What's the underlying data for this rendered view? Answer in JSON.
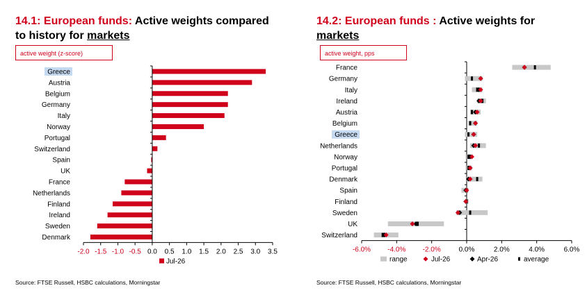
{
  "left": {
    "title_red": "14.1: European funds:",
    "title_mid": " Active weights compared to history for ",
    "title_u": "markets",
    "unit": "active weight (z-score)",
    "source": "Source: FTSE Russell, HSBC calculations, Morningstar"
  },
  "right": {
    "title_red": "14.2: European funds :",
    "title_mid": " Active weights for ",
    "title_u": "markets",
    "unit": "active weight, pps",
    "source": "Source: FTSE Russell, HSBC calculations, Morningstar"
  },
  "colors": {
    "accent": "#d0021b",
    "highlight": "#c5d9f1",
    "range": "#c8c8c8"
  },
  "chart_data": [
    {
      "type": "bar",
      "orientation": "horizontal",
      "categories": [
        "Greece",
        "Austria",
        "Belgium",
        "Germany",
        "Italy",
        "Norway",
        "Portugal",
        "Switzerland",
        "Spain",
        "UK",
        "France",
        "Netherlands",
        "Finland",
        "Ireland",
        "Sweden",
        "Denmark"
      ],
      "highlight_category": "Greece",
      "series": [
        {
          "name": "Jul-26",
          "values": [
            3.3,
            2.9,
            2.2,
            2.2,
            2.1,
            1.5,
            0.4,
            0.15,
            -0.03,
            -0.15,
            -0.8,
            -0.9,
            -1.15,
            -1.3,
            -1.6,
            -1.8
          ]
        }
      ],
      "xlim": [
        -2.0,
        3.5
      ],
      "xticks": [
        "-2.0",
        "-1.5",
        "-1.0",
        "-0.5",
        "0.0",
        "0.5",
        "1.0",
        "1.5",
        "2.0",
        "2.5",
        "3.0",
        "3.5"
      ],
      "xtick_values": [
        -2.0,
        -1.5,
        -1.0,
        -0.5,
        0.0,
        0.5,
        1.0,
        1.5,
        2.0,
        2.5,
        3.0,
        3.5
      ],
      "legend": [
        "Jul-26"
      ],
      "legend_position": "bottom"
    },
    {
      "type": "range-dot",
      "orientation": "horizontal",
      "categories": [
        "France",
        "Germany",
        "Italy",
        "Ireland",
        "Austria",
        "Belgium",
        "Greece",
        "Netherlands",
        "Norway",
        "Portugal",
        "Denmark",
        "Spain",
        "Finland",
        "Sweden",
        "UK",
        "Switzerland"
      ],
      "highlight_category": "Greece",
      "series": [
        {
          "name": "range",
          "values": [
            [
              2.6,
              4.8
            ],
            [
              -0.1,
              0.9
            ],
            [
              0.3,
              0.9
            ],
            [
              0.6,
              1.1
            ],
            [
              0.2,
              0.8
            ],
            [
              0.1,
              0.6
            ],
            [
              -0.1,
              0.6
            ],
            [
              0.2,
              1.1
            ],
            [
              0.0,
              0.3
            ],
            [
              0.0,
              0.3
            ],
            [
              0.0,
              0.9
            ],
            [
              -0.3,
              0.1
            ],
            [
              -0.1,
              0.1
            ],
            [
              -0.6,
              1.2
            ],
            [
              -4.5,
              -1.3
            ],
            [
              -5.3,
              -3.9
            ]
          ]
        },
        {
          "name": "Jul-26",
          "values": [
            3.3,
            0.8,
            0.8,
            0.8,
            0.6,
            0.5,
            0.4,
            0.5,
            0.3,
            0.2,
            0.2,
            0.0,
            -0.05,
            -0.5,
            -3.1,
            -4.6
          ]
        },
        {
          "name": "Apr-26",
          "values": [
            3.3,
            0.8,
            0.7,
            0.7,
            0.5,
            0.5,
            0.4,
            0.4,
            0.2,
            0.2,
            0.1,
            -0.05,
            -0.05,
            -0.4,
            -2.9,
            -4.7
          ]
        },
        {
          "name": "average",
          "values": [
            3.9,
            0.3,
            0.6,
            0.9,
            0.3,
            0.2,
            0.1,
            0.7,
            0.1,
            0.1,
            0.6,
            0.0,
            0.0,
            0.2,
            -2.8,
            -4.8
          ]
        }
      ],
      "xlim": [
        -6.0,
        6.0
      ],
      "xticks": [
        "-6.0%",
        "-4.0%",
        "-2.0%",
        "0.0%",
        "2.0%",
        "4.0%",
        "6.0%"
      ],
      "xtick_values": [
        -6,
        -4,
        -2,
        0,
        2,
        4,
        6
      ],
      "legend": [
        "range",
        "Jul-26",
        "Apr-26",
        "average"
      ],
      "legend_position": "bottom"
    }
  ]
}
